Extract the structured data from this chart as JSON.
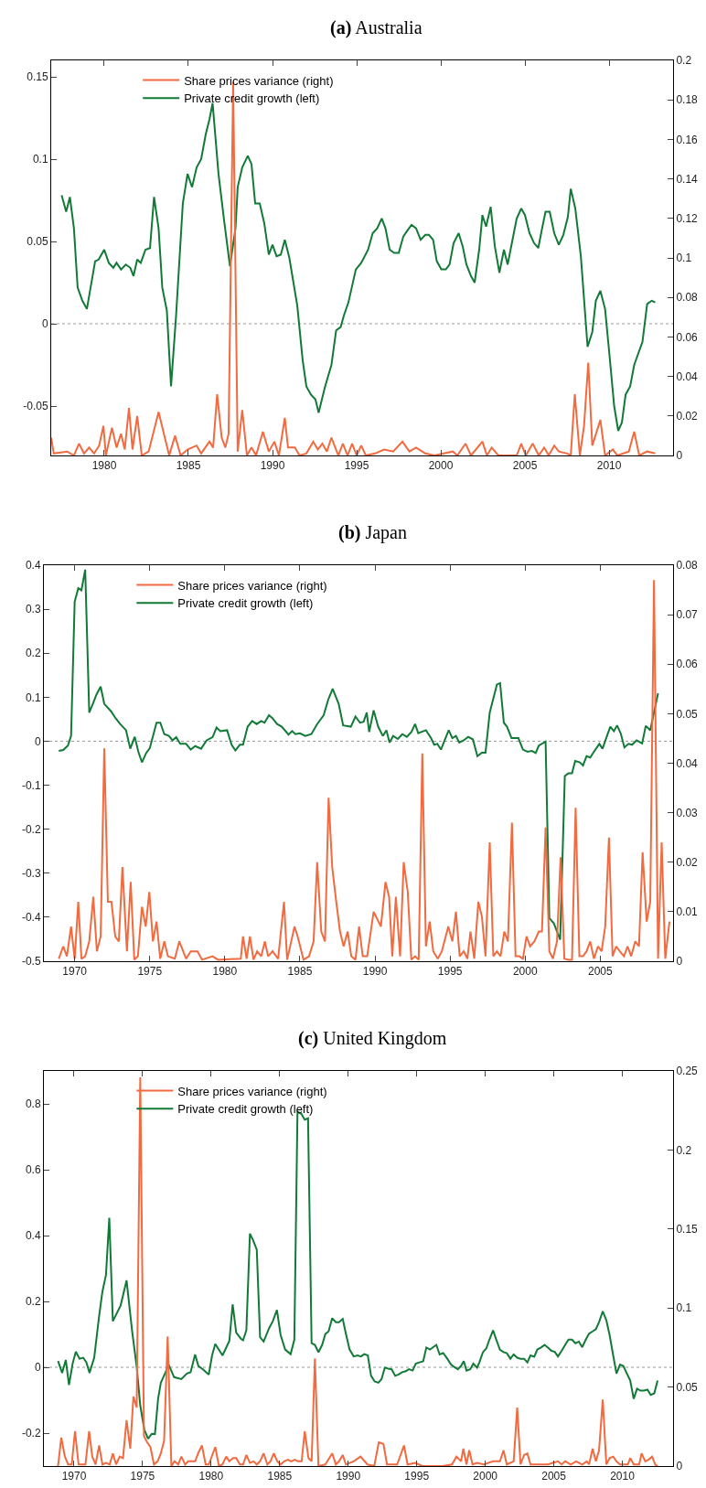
{
  "chart_data": [
    {
      "type": "line",
      "title": "(a) Australia",
      "xlim": [
        1976.85,
        2013.8
      ],
      "xticks": [
        1980,
        1985,
        1990,
        1995,
        2000,
        2005,
        2010
      ],
      "ylim": [
        -0.08,
        0.16
      ],
      "yticks": [
        -0.05,
        0,
        0.05,
        0.1,
        0.15
      ],
      "y2lim": [
        0,
        0.2
      ],
      "y2ticks": [
        0,
        0.02,
        0.04,
        0.06,
        0.08,
        0.1,
        0.12,
        0.14,
        0.16,
        0.18,
        0.2
      ],
      "legend": "top left",
      "grid": false,
      "ref_lines": [
        {
          "axis": "y",
          "value": 0,
          "line_style": "dotted",
          "color": "#999999"
        }
      ],
      "series": [
        {
          "name": "Share prices variance (right)",
          "color": "#f26a3f",
          "axis": "y2",
          "x": [
            1976.85,
            1977.0,
            1977.8,
            1978.2,
            1978.5,
            1978.8,
            1979.1,
            1979.4,
            1979.7,
            1979.95,
            1980.1,
            1980.46,
            1980.73,
            1981.0,
            1981.22,
            1981.47,
            1981.68,
            1981.96,
            1982.23,
            1982.64,
            1983.23,
            1983.86,
            1984.21,
            1984.54,
            1984.95,
            1985.49,
            1985.76,
            1986.25,
            1986.47,
            1986.71,
            1986.98,
            1987.2,
            1987.39,
            1987.66,
            1987.93,
            1988.2,
            1988.48,
            1988.75,
            1989.02,
            1989.43,
            1989.78,
            1990.11,
            1990.38,
            1990.73,
            1990.92,
            1991.33,
            1991.6,
            1992.01,
            1992.42,
            1992.69,
            1992.96,
            1993.23,
            1993.5,
            1993.91,
            1994.18,
            1994.46,
            1994.73,
            1995.0,
            1995.27,
            1995.54,
            1996.09,
            1996.63,
            1997.17,
            1997.72,
            1998.13,
            1998.53,
            1999.08,
            1999.62,
            2000.71,
            2000.98,
            2001.47,
            2001.79,
            2002.47,
            2002.74,
            2003.02,
            2003.42,
            2004.51,
            2004.78,
            2005.05,
            2005.46,
            2005.82,
            2006.14,
            2006.41,
            2006.74,
            2007.01,
            2007.5,
            2007.72,
            2007.96,
            2008.26,
            2008.51,
            2008.76,
            2009.0,
            2009.48,
            2009.76,
            2010.22,
            2010.49,
            2011.17,
            2011.49,
            2011.79,
            2012.26,
            2012.74
          ],
          "values": [
            0.009,
            0.001,
            0.002,
            0.0,
            0.006,
            0.001,
            0.004,
            0.001,
            0.005,
            0.015,
            0.0,
            0.014,
            0.004,
            0.011,
            0.003,
            0.024,
            0.003,
            0.02,
            0.0,
            0.002,
            0.022,
            0.0,
            0.01,
            0.0,
            0.003,
            0.005,
            0.001,
            0.007,
            0.004,
            0.031,
            0.009,
            0.004,
            0.011,
            0.189,
            0.002,
            0.023,
            0.0,
            0.004,
            0.0,
            0.012,
            0.002,
            0.007,
            0.0,
            0.019,
            0.004,
            0.004,
            0.0,
            0.001,
            0.007,
            0.003,
            0.006,
            0.002,
            0.009,
            0.0,
            0.006,
            0.0,
            0.006,
            0.0,
            0.005,
            0.0,
            0.001,
            0.003,
            0.002,
            0.007,
            0.002,
            0.004,
            0.001,
            0.0,
            0.002,
            0.0,
            0.006,
            0.0,
            0.007,
            0.0,
            0.004,
            0.0,
            0.0,
            0.006,
            0.0,
            0.006,
            0.0,
            0.004,
            0.0,
            0.005,
            0.002,
            0.001,
            0.0,
            0.031,
            0.0,
            0.015,
            0.047,
            0.005,
            0.018,
            0.0,
            0.003,
            0.0,
            0.002,
            0.012,
            0.0,
            0.002,
            0.001
          ]
        },
        {
          "name": "Private credit growth (left)",
          "color": "#127a37",
          "axis": "y",
          "x": [
            1977.47,
            1977.74,
            1977.96,
            1978.2,
            1978.42,
            1978.7,
            1978.97,
            1979.46,
            1979.67,
            1980.0,
            1980.27,
            1980.54,
            1980.73,
            1981.0,
            1981.28,
            1981.55,
            1981.74,
            1981.96,
            1982.17,
            1982.45,
            1982.72,
            1982.96,
            1983.23,
            1983.45,
            1983.72,
            1983.97,
            1984.27,
            1984.67,
            1984.95,
            1985.22,
            1985.49,
            1985.76,
            1986.03,
            1986.25,
            1986.44,
            1986.79,
            1987.12,
            1987.47,
            1987.8,
            1987.93,
            1988.2,
            1988.53,
            1988.75,
            1988.97,
            1989.24,
            1989.51,
            1989.78,
            1990.0,
            1990.24,
            1990.49,
            1990.73,
            1991.0,
            1991.47,
            1991.79,
            1992.01,
            1992.28,
            1992.55,
            1992.74,
            1993.1,
            1993.5,
            1993.78,
            1994.05,
            1994.24,
            1994.51,
            1994.95,
            1995.27,
            1995.68,
            1995.95,
            1996.22,
            1996.49,
            1996.71,
            1996.96,
            1997.23,
            1997.5,
            1997.77,
            1998.04,
            1998.26,
            1998.53,
            1998.8,
            1999.08,
            1999.29,
            1999.54,
            1999.76,
            2000.03,
            2000.3,
            2000.52,
            2000.76,
            2001.06,
            2001.3,
            2001.52,
            2001.79,
            2002.01,
            2002.28,
            2002.47,
            2002.69,
            2002.96,
            2003.21,
            2003.48,
            2003.75,
            2003.97,
            2004.24,
            2004.51,
            2004.78,
            2005.0,
            2005.27,
            2005.54,
            2005.79,
            2006.0,
            2006.22,
            2006.47,
            2006.74,
            2007.01,
            2007.28,
            2007.55,
            2007.72,
            2007.99,
            2008.32,
            2008.72,
            2009.0,
            2009.21,
            2009.48,
            2009.76,
            2010.03,
            2010.3,
            2010.54,
            2010.76,
            2010.98,
            2011.25,
            2011.49,
            2011.98,
            2012.26,
            2012.53,
            2012.74
          ],
          "values": [
            0.078,
            0.068,
            0.077,
            0.058,
            0.022,
            0.014,
            0.009,
            0.038,
            0.039,
            0.045,
            0.037,
            0.034,
            0.037,
            0.033,
            0.036,
            0.034,
            0.029,
            0.039,
            0.037,
            0.045,
            0.046,
            0.077,
            0.058,
            0.022,
            0.008,
            -0.038,
            0.005,
            0.073,
            0.091,
            0.083,
            0.095,
            0.1,
            0.115,
            0.124,
            0.134,
            0.091,
            0.063,
            0.035,
            0.058,
            0.083,
            0.095,
            0.102,
            0.097,
            0.073,
            0.073,
            0.061,
            0.042,
            0.048,
            0.041,
            0.042,
            0.051,
            0.04,
            0.011,
            -0.022,
            -0.038,
            -0.043,
            -0.046,
            -0.054,
            -0.039,
            -0.025,
            -0.004,
            -0.002,
            0.005,
            0.013,
            0.033,
            0.037,
            0.045,
            0.055,
            0.058,
            0.064,
            0.058,
            0.045,
            0.043,
            0.043,
            0.053,
            0.057,
            0.06,
            0.058,
            0.051,
            0.054,
            0.054,
            0.051,
            0.038,
            0.033,
            0.033,
            0.036,
            0.049,
            0.055,
            0.047,
            0.036,
            0.029,
            0.025,
            0.045,
            0.066,
            0.059,
            0.071,
            0.047,
            0.031,
            0.045,
            0.036,
            0.05,
            0.064,
            0.07,
            0.066,
            0.055,
            0.049,
            0.046,
            0.057,
            0.068,
            0.068,
            0.055,
            0.048,
            0.054,
            0.065,
            0.082,
            0.07,
            0.041,
            -0.014,
            -0.005,
            0.014,
            0.02,
            0.009,
            -0.02,
            -0.05,
            -0.065,
            -0.06,
            -0.043,
            -0.038,
            -0.025,
            -0.011,
            0.012,
            0.014,
            0.013
          ]
        }
      ]
    },
    {
      "type": "line",
      "title": "(b) Japan",
      "xlim": [
        1967.95,
        2009.85
      ],
      "xticks": [
        1970,
        1975,
        1980,
        1985,
        1990,
        1995,
        2000,
        2005
      ],
      "ylim": [
        -0.5,
        0.4
      ],
      "yticks": [
        -0.5,
        -0.4,
        -0.3,
        -0.2,
        -0.1,
        0,
        0.1,
        0.2,
        0.3,
        0.4
      ],
      "y2lim": [
        0,
        0.08
      ],
      "y2ticks": [
        0,
        0.01,
        0.02,
        0.03,
        0.04,
        0.05,
        0.06,
        0.07,
        0.08
      ],
      "legend": "top left",
      "grid": false,
      "ref_lines": [
        {
          "axis": "y",
          "value": 0,
          "line_style": "dotted",
          "color": "#999999"
        }
      ],
      "series": [
        {
          "name": "Share prices variance (right)",
          "color": "#f26a3f",
          "axis": "y2",
          "x": [
            1968.94,
            1969.24,
            1969.48,
            1969.76,
            1970.0,
            1970.24,
            1970.45,
            1970.7,
            1970.97,
            1971.24,
            1971.48,
            1971.73,
            1971.97,
            1972.21,
            1972.45,
            1972.7,
            1972.94,
            1973.18,
            1973.48,
            1973.73,
            1973.97,
            1974.21,
            1974.48,
            1974.73,
            1974.97,
            1975.21,
            1975.45,
            1975.7,
            1975.97,
            1976.21,
            1976.67,
            1976.97,
            1977.42,
            1977.73,
            1978.18,
            1978.48,
            1979.18,
            1979.55,
            1981.06,
            1981.21,
            1981.45,
            1981.67,
            1981.91,
            1982.15,
            1982.42,
            1982.67,
            1982.88,
            1983.18,
            1983.55,
            1983.94,
            1984.15,
            1984.64,
            1984.85,
            1985.24,
            1985.61,
            1985.91,
            1986.15,
            1986.42,
            1986.67,
            1986.91,
            1987.15,
            1987.42,
            1987.67,
            1987.91,
            1988.18,
            1988.42,
            1988.7,
            1988.94,
            1989.18,
            1989.48,
            1989.91,
            1990.39,
            1990.7,
            1990.94,
            1991.15,
            1991.39,
            1991.67,
            1991.91,
            1992.18,
            1992.42,
            1992.67,
            1992.91,
            1993.15,
            1993.39,
            1993.64,
            1993.88,
            1994.18,
            1994.45,
            1994.88,
            1995.15,
            1995.39,
            1995.64,
            1995.91,
            1996.15,
            1996.36,
            1996.61,
            1996.88,
            1997.12,
            1997.36,
            1997.64,
            1997.88,
            1998.12,
            1998.36,
            1998.61,
            1998.85,
            1999.12,
            1999.36,
            1999.61,
            1999.85,
            2000.09,
            2000.33,
            2000.61,
            2000.91,
            2001.12,
            2001.36,
            2001.61,
            2001.85,
            2002.12,
            2002.36,
            2002.61,
            2002.88,
            2003.12,
            2003.36,
            2003.61,
            2003.85,
            2004.09,
            2004.33,
            2004.58,
            2004.85,
            2005.09,
            2005.33,
            2005.58,
            2005.82,
            2006.06,
            2006.3,
            2006.58,
            2006.82,
            2007.06,
            2007.33,
            2007.58,
            2007.82,
            2008.09,
            2008.33,
            2008.58,
            2008.85,
            2009.09,
            2009.33,
            2009.61
          ],
          "values": [
            0.0005,
            0.003,
            0.001,
            0.007,
            0.0005,
            0.012,
            0.0005,
            0.001,
            0.004,
            0.013,
            0.002,
            0.005,
            0.043,
            0.012,
            0.012,
            0.005,
            0.004,
            0.019,
            0.002,
            0.016,
            0.0003,
            0.001,
            0.011,
            0.007,
            0.014,
            0.004,
            0.008,
            0.0005,
            0.004,
            0.001,
            0.0005,
            0.004,
            0.0005,
            0.002,
            0.002,
            0.0003,
            0.001,
            0.0003,
            0.0005,
            0.005,
            0.0005,
            0.005,
            0.0003,
            0.002,
            0.001,
            0.004,
            0.001,
            0.002,
            0.0005,
            0.012,
            0.0003,
            0.007,
            0.005,
            0.0003,
            0.001,
            0.004,
            0.02,
            0.006,
            0.004,
            0.033,
            0.019,
            0.012,
            0.006,
            0.003,
            0.006,
            0.001,
            0.0003,
            0.007,
            0.001,
            0.001,
            0.01,
            0.007,
            0.016,
            0.013,
            0.001,
            0.013,
            0.001,
            0.02,
            0.014,
            0.0003,
            0.001,
            0.0003,
            0.042,
            0.003,
            0.008,
            0.002,
            0.0005,
            0.002,
            0.007,
            0.004,
            0.01,
            0.001,
            0.002,
            0.0005,
            0.006,
            0.0005,
            0.012,
            0.009,
            0.001,
            0.024,
            0.001,
            0.002,
            0.001,
            0.006,
            0.004,
            0.028,
            0.001,
            0.001,
            0.0005,
            0.005,
            0.003,
            0.004,
            0.006,
            0.006,
            0.027,
            0.002,
            0.0005,
            0.004,
            0.021,
            0.0005,
            0.0003,
            0.0003,
            0.031,
            0.001,
            0.001,
            0.002,
            0.004,
            0.0005,
            0.003,
            0.002,
            0.007,
            0.025,
            0.001,
            0.003,
            0.002,
            0.001,
            0.003,
            0.001,
            0.004,
            0.003,
            0.022,
            0.008,
            0.012,
            0.077,
            0.0005,
            0.024,
            0.0005,
            0.008
          ]
        },
        {
          "name": "Private credit growth (left)",
          "color": "#127a37",
          "axis": "y",
          "x": [
            1968.94,
            1969.24,
            1969.55,
            1969.76,
            1970.0,
            1970.24,
            1970.45,
            1970.7,
            1970.97,
            1971.21,
            1971.45,
            1971.73,
            1971.97,
            1972.42,
            1972.73,
            1973.03,
            1973.42,
            1973.7,
            1974.0,
            1974.24,
            1974.48,
            1974.76,
            1975.0,
            1975.45,
            1975.7,
            1975.97,
            1976.27,
            1976.52,
            1976.76,
            1977.03,
            1977.42,
            1977.73,
            1978.03,
            1978.42,
            1978.79,
            1979.18,
            1979.45,
            1979.7,
            1980.15,
            1980.45,
            1980.7,
            1981.0,
            1981.21,
            1981.52,
            1981.82,
            1982.12,
            1982.42,
            1982.64,
            1982.94,
            1983.18,
            1983.48,
            1983.79,
            1984.24,
            1984.48,
            1984.7,
            1985.0,
            1985.36,
            1985.76,
            1986.15,
            1986.58,
            1986.88,
            1987.18,
            1987.58,
            1987.88,
            1988.39,
            1988.7,
            1989.0,
            1989.24,
            1989.45,
            1989.61,
            1989.91,
            1990.21,
            1990.52,
            1990.76,
            1990.97,
            1991.21,
            1991.52,
            1991.82,
            1992.12,
            1992.42,
            1992.67,
            1992.88,
            1993.39,
            1993.73,
            1993.94,
            1994.15,
            1994.39,
            1994.64,
            1994.91,
            1995.15,
            1995.39,
            1995.61,
            1995.91,
            1996.21,
            1996.52,
            1996.82,
            1997.12,
            1997.36,
            1997.64,
            1998.12,
            1998.33,
            1998.58,
            1998.79,
            1999.09,
            1999.55,
            1999.85,
            2000.15,
            2000.45,
            2000.7,
            2000.91,
            2001.36,
            2001.61,
            2001.91,
            2002.33,
            2002.64,
            2002.88,
            2003.12,
            2003.33,
            2003.64,
            2003.85,
            2004.09,
            2004.33,
            2004.64,
            2004.94,
            2005.15,
            2005.45,
            2005.67,
            2005.91,
            2006.12,
            2006.36,
            2006.61,
            2006.88,
            2007.12,
            2007.42,
            2007.79,
            2008.03,
            2008.33,
            2008.85
          ],
          "values": [
            -0.022,
            -0.02,
            -0.01,
            0.012,
            0.317,
            0.348,
            0.343,
            0.39,
            0.065,
            0.085,
            0.106,
            0.124,
            0.085,
            0.068,
            0.052,
            0.039,
            0.025,
            -0.017,
            0.01,
            -0.024,
            -0.048,
            -0.027,
            -0.016,
            0.042,
            0.042,
            0.016,
            0.012,
            0.002,
            0.009,
            -0.006,
            -0.006,
            -0.019,
            -0.011,
            -0.017,
            0.002,
            0.009,
            0.031,
            0.023,
            0.025,
            -0.008,
            -0.021,
            -0.008,
            -0.008,
            0.033,
            0.046,
            0.039,
            0.046,
            0.042,
            0.059,
            0.052,
            0.039,
            0.033,
            0.015,
            0.023,
            0.016,
            0.018,
            0.012,
            0.016,
            0.039,
            0.059,
            0.094,
            0.119,
            0.085,
            0.036,
            0.033,
            0.056,
            0.042,
            0.044,
            0.065,
            0.021,
            0.07,
            0.033,
            0.012,
            0.025,
            -0.003,
            0.012,
            0.005,
            0.016,
            0.01,
            0.021,
            0.039,
            0.018,
            0.025,
            0.007,
            -0.008,
            -0.006,
            -0.019,
            0.002,
            0.025,
            0.007,
            0.012,
            -0.003,
            0.002,
            0.01,
            0.004,
            -0.034,
            -0.026,
            -0.026,
            0.065,
            0.129,
            0.132,
            0.042,
            0.033,
            0.007,
            0.007,
            -0.019,
            -0.024,
            -0.022,
            -0.027,
            -0.01,
            -0.001,
            -0.402,
            -0.414,
            -0.451,
            -0.079,
            -0.073,
            -0.073,
            -0.045,
            -0.048,
            -0.055,
            -0.034,
            -0.037,
            -0.021,
            -0.006,
            -0.017,
            0.012,
            0.033,
            0.023,
            0.036,
            0.018,
            -0.014,
            -0.006,
            -0.008,
            0.002,
            -0.005,
            0.035,
            0.025,
            0.109
          ]
        }
      ]
    },
    {
      "type": "line",
      "title": "(c) United Kingdom",
      "xlim": [
        1967.8,
        2013.7
      ],
      "xticks": [
        1970,
        1975,
        1980,
        1985,
        1990,
        1995,
        2000,
        2005,
        2010
      ],
      "ylim": [
        -0.3,
        0.9
      ],
      "yticks": [
        -0.2,
        0,
        0.2,
        0.4,
        0.6,
        0.8
      ],
      "y2lim": [
        0,
        0.25
      ],
      "y2ticks": [
        0,
        0.05,
        0.1,
        0.15,
        0.2,
        0.25
      ],
      "legend": "top left",
      "grid": false,
      "ref_lines": [
        {
          "axis": "y",
          "value": 0,
          "line_style": "dotted",
          "color": "#999999"
        }
      ],
      "series": [
        {
          "name": "Share prices variance (right)",
          "color": "#f26a3f",
          "axis": "y2",
          "x": [
            1968.83,
            1969.07,
            1969.33,
            1969.57,
            1969.83,
            1970.07,
            1970.33,
            1970.57,
            1970.83,
            1971.1,
            1971.33,
            1971.57,
            1971.83,
            1972.07,
            1972.33,
            1972.6,
            1972.83,
            1973.07,
            1973.33,
            1973.57,
            1973.83,
            1974.1,
            1974.33,
            1974.57,
            1974.83,
            1975.1,
            1975.33,
            1975.57,
            1975.83,
            1976.1,
            1976.33,
            1976.57,
            1976.83,
            1977.1,
            1977.33,
            1977.6,
            1977.83,
            1978.1,
            1978.33,
            1978.6,
            1978.83,
            1979.1,
            1979.33,
            1979.6,
            1979.83,
            1980.3,
            1980.57,
            1980.83,
            1981.1,
            1981.33,
            1981.6,
            1981.83,
            1982.1,
            1982.33,
            1982.57,
            1982.83,
            1983.1,
            1983.33,
            1983.57,
            1983.83,
            1984.1,
            1984.33,
            1984.57,
            1984.83,
            1985.07,
            1985.33,
            1985.6,
            1985.83,
            1986.1,
            1986.33,
            1986.6,
            1986.83,
            1987.1,
            1987.33,
            1987.57,
            1987.83,
            1988.33,
            1988.83,
            1989.1,
            1989.33,
            1989.6,
            1989.83,
            1990.4,
            1990.9,
            1991.4,
            1991.9,
            1992.23,
            1992.57,
            1992.83,
            1993.57,
            1994.07,
            1994.33,
            1994.9,
            1995.4,
            1996.9,
            1997.57,
            1997.9,
            1998.23,
            1998.4,
            1998.63,
            1998.83,
            1999.07,
            1999.4,
            1999.9,
            2000.57,
            2001.07,
            2001.33,
            2001.57,
            2002.07,
            2002.33,
            2002.57,
            2002.83,
            2003.07,
            2003.3,
            2004.57,
            2005.3,
            2005.57,
            2005.83,
            2006.23,
            2006.63,
            2007.07,
            2007.4,
            2007.57,
            2007.83,
            2008.07,
            2008.3,
            2008.57,
            2008.83,
            2009.07,
            2009.33,
            2009.57,
            2009.83,
            2010.4,
            2010.57,
            2010.83,
            2011.23,
            2011.4,
            2011.67,
            2011.9,
            2012.17,
            2012.4,
            2012.57
          ],
          "values": [
            0,
            0.018,
            0.006,
            0.001,
            0.001,
            0.022,
            0.001,
            0.001,
            0.001,
            0.022,
            0.006,
            0.001,
            0.013,
            0.001,
            0.002,
            0.001,
            0.008,
            0.001,
            0.006,
            0.005,
            0.029,
            0.011,
            0.044,
            0.037,
            0.246,
            0.019,
            0.015,
            0.012,
            0.001,
            0.003,
            0.008,
            0.016,
            0.082,
            0,
            0.003,
            0.001,
            0.006,
            0.001,
            0.003,
            0.003,
            0.003,
            0.009,
            0.013,
            0.001,
            0.001,
            0.012,
            0,
            0.001,
            0.006,
            0.003,
            0.005,
            0.005,
            0.001,
            0.001,
            0.007,
            0.002,
            0.003,
            0.001,
            0.003,
            0.008,
            0.001,
            0.003,
            0.008,
            0.003,
            0.001,
            0.003,
            0.004,
            0.003,
            0.004,
            0.003,
            0.003,
            0.022,
            0.005,
            0.003,
            0.068,
            0,
            0.001,
            0.008,
            0.001,
            0.003,
            0.007,
            0.001,
            0.003,
            0.006,
            0.001,
            0,
            0.015,
            0.014,
            0.001,
            0.001,
            0.013,
            0.001,
            0.002,
            0,
            0,
            0.001,
            0.006,
            0.003,
            0.011,
            0.001,
            0.01,
            0.001,
            0.002,
            0.001,
            0.003,
            0.003,
            0.01,
            0.001,
            0.003,
            0.037,
            0.001,
            0.007,
            0.008,
            0.001,
            0.001,
            0.003,
            0.001,
            0.003,
            0.001,
            0.003,
            0.001,
            0.003,
            0.001,
            0.011,
            0.003,
            0.01,
            0.042,
            0.001,
            0.005,
            0.006,
            0.003,
            0.001,
            0.001,
            0.005,
            0.001,
            0.001,
            0.008,
            0.003,
            0.004,
            0.006,
            0.001,
            0
          ]
        },
        {
          "name": "Private credit growth (left)",
          "color": "#127a37",
          "axis": "y",
          "x": [
            1968.83,
            1969.13,
            1969.4,
            1969.63,
            1969.9,
            1970.13,
            1970.4,
            1970.67,
            1970.9,
            1971.13,
            1971.47,
            1971.83,
            1972.07,
            1972.33,
            1972.57,
            1972.83,
            1973.4,
            1973.83,
            1974.23,
            1974.57,
            1974.83,
            1975.13,
            1975.4,
            1975.67,
            1975.9,
            1976.13,
            1976.33,
            1976.63,
            1976.9,
            1977.3,
            1977.83,
            1978.23,
            1978.5,
            1978.83,
            1979.07,
            1979.4,
            1979.83,
            1980.07,
            1980.3,
            1980.83,
            1981.33,
            1981.57,
            1981.83,
            1982.17,
            1982.33,
            1982.57,
            1982.83,
            1983.07,
            1983.33,
            1983.57,
            1983.83,
            1984.23,
            1984.5,
            1984.8,
            1985.07,
            1985.4,
            1985.8,
            1986.07,
            1986.3,
            1986.57,
            1986.83,
            1987.07,
            1987.33,
            1987.57,
            1987.83,
            1988.1,
            1988.33,
            1988.57,
            1988.83,
            1989.1,
            1989.33,
            1989.6,
            1989.83,
            1990.1,
            1990.4,
            1990.67,
            1990.93,
            1991.17,
            1991.43,
            1991.67,
            1991.93,
            1992.2,
            1992.43,
            1992.67,
            1992.93,
            1993.17,
            1993.43,
            1993.67,
            1993.93,
            1994.2,
            1994.43,
            1994.7,
            1994.93,
            1995.2,
            1995.47,
            1995.7,
            1995.97,
            1996.2,
            1996.43,
            1996.67,
            1996.93,
            1997.23,
            1997.5,
            1997.73,
            1998.0,
            1998.23,
            1998.43,
            1998.63,
            1998.9,
            1999.13,
            1999.4,
            1999.57,
            1999.83,
            2000.07,
            2000.3,
            2000.57,
            2000.8,
            2001.07,
            2001.33,
            2001.57,
            2001.83,
            2002.07,
            2002.33,
            2002.57,
            2002.83,
            2003.07,
            2003.3,
            2003.57,
            2003.8,
            2004.07,
            2004.33,
            2004.57,
            2004.83,
            2005.07,
            2005.3,
            2005.57,
            2005.83,
            2006.07,
            2006.33,
            2006.57,
            2006.83,
            2007.07,
            2007.33,
            2007.57,
            2007.83,
            2008.07,
            2008.3,
            2008.57,
            2008.83,
            2009.07,
            2009.33,
            2009.57,
            2009.83,
            2010.07,
            2010.33,
            2010.57,
            2010.83,
            2011.07,
            2011.33,
            2011.57,
            2011.83,
            2012.07,
            2012.33,
            2012.57
          ],
          "values": [
            0.019,
            -0.017,
            0.022,
            -0.054,
            0.012,
            0.047,
            0.026,
            0.029,
            0.015,
            -0.017,
            0.029,
            0.156,
            0.23,
            0.281,
            0.454,
            0.14,
            0.188,
            0.264,
            0.112,
            0.001,
            -0.116,
            -0.19,
            -0.217,
            -0.202,
            -0.203,
            -0.096,
            -0.047,
            -0.019,
            0.008,
            -0.03,
            -0.036,
            -0.019,
            -0.015,
            0.039,
            0.004,
            -0.006,
            -0.022,
            0.036,
            0.071,
            0.036,
            0.08,
            0.191,
            0.105,
            0.087,
            0.082,
            0.112,
            0.406,
            0.385,
            0.357,
            0.091,
            0.078,
            0.119,
            0.14,
            0.174,
            0.098,
            0.054,
            0.04,
            0.084,
            0.776,
            0.77,
            0.752,
            0.756,
            0.073,
            0.068,
            0.046,
            0.068,
            0.101,
            0.109,
            0.149,
            0.137,
            0.137,
            0.147,
            0.102,
            0.054,
            0.033,
            0.036,
            0.033,
            0.04,
            0.036,
            -0.026,
            -0.043,
            -0.047,
            -0.036,
            -0.001,
            -0.004,
            -0.006,
            -0.026,
            -0.022,
            -0.015,
            -0.012,
            -0.006,
            -0.01,
            0.011,
            0.015,
            0.018,
            0.06,
            0.054,
            0.061,
            0.068,
            0.039,
            0.043,
            0.026,
            0.008,
            0.001,
            -0.006,
            0.004,
            0.019,
            -0.01,
            -0.006,
            0.011,
            -0.001,
            0.015,
            0.046,
            0.057,
            0.084,
            0.112,
            0.084,
            0.053,
            0.046,
            0.043,
            0.026,
            0.039,
            0.029,
            0.026,
            0.026,
            0.015,
            0.036,
            0.032,
            0.054,
            0.06,
            0.068,
            0.06,
            0.05,
            0.047,
            0.033,
            0.05,
            0.068,
            0.084,
            0.084,
            0.073,
            0.078,
            0.061,
            0.084,
            0.102,
            0.109,
            0.116,
            0.137,
            0.17,
            0.143,
            0.098,
            0.036,
            -0.019,
            0.008,
            0.004,
            -0.019,
            -0.04,
            -0.096,
            -0.065,
            -0.071,
            -0.071,
            -0.068,
            -0.084,
            -0.079,
            -0.04
          ]
        }
      ]
    }
  ]
}
